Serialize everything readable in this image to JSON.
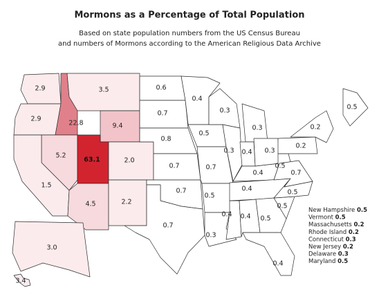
{
  "title": "Mormons as a Percentage of Total Population",
  "subtitle": [
    "Based on state population numbers from the US Census Bureau",
    "and numbers of Mormons according to the American Religious Data Archive"
  ],
  "states": {
    "values": [
      2.9,
      2.9,
      22.8,
      3.5,
      9.4,
      5.2,
      63.1,
      2.0,
      1.5,
      4.5,
      2.2,
      3.0,
      3.4,
      0.6,
      0.7,
      0.8,
      0.7,
      0.7,
      0.7,
      0.4,
      0.5,
      0.7,
      0.5,
      0.3,
      0.3,
      0.3,
      0.4,
      0.3,
      0.4,
      0.4,
      0.4,
      0.4,
      0.3,
      0.5,
      0.5,
      0.4,
      0.5,
      0.5,
      0.7,
      0.2,
      0.2,
      0.5
    ],
    "value_labels": [
      "2.9",
      "2.9",
      "22.8",
      "3.5",
      "9.4",
      "5.2",
      "63.1",
      "2.0",
      "1.5",
      "4.5",
      "2.2",
      "3.0",
      "3.4",
      "0.6",
      "0.7",
      "0.8",
      "0.7",
      "0.7",
      "0.7",
      "0.4",
      "0.5",
      "0.7",
      "0.5",
      "0.3",
      "0.3",
      "0.3",
      "0.4",
      "0.3",
      "0.4",
      "0.4",
      "0.4",
      "0.4",
      "0.3",
      "0.5",
      "0.5",
      "0.4",
      "0.5",
      "0.5",
      "0.7",
      "0.2",
      "0.2",
      "0.5"
    ]
  },
  "small_states": [
    {
      "name": "New Hampshire",
      "value": 0.5
    },
    {
      "name": "Vermont",
      "value": 0.5
    },
    {
      "name": "Massachusetts",
      "value": 0.2
    },
    {
      "name": "Rhode Island",
      "value": 0.2
    },
    {
      "name": "Connecticut",
      "value": 0.3
    },
    {
      "name": "New Jersey",
      "value": 0.2
    },
    {
      "name": "Delaware",
      "value": 0.3
    },
    {
      "name": "Maryland",
      "value": 0.5
    }
  ]
}
